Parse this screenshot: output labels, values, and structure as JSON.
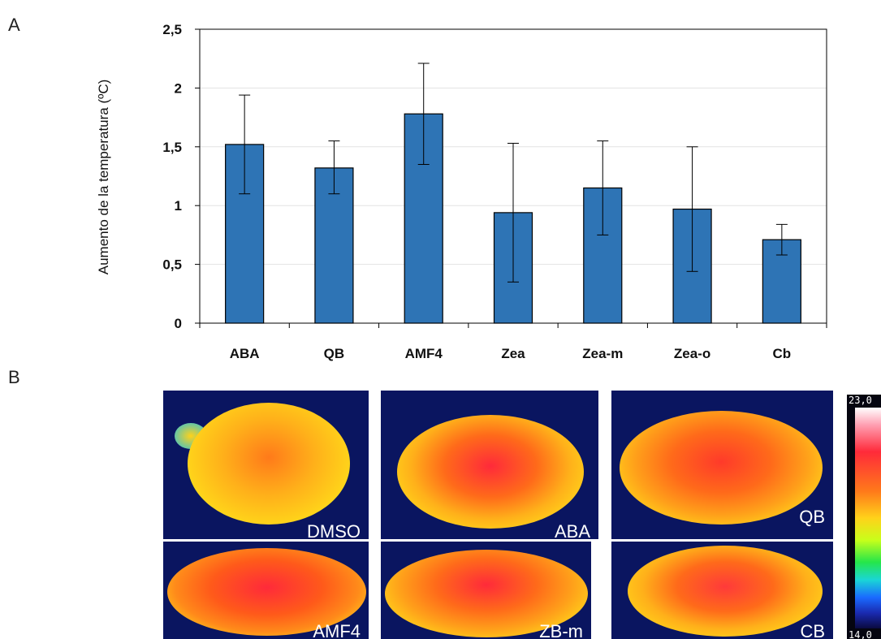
{
  "panels": {
    "a": "A",
    "b": "B"
  },
  "chart_data": {
    "type": "bar",
    "categories": [
      "ABA",
      "QB",
      "AMF4",
      "Zea",
      "Zea-m",
      "Zea-o",
      "Cb"
    ],
    "values": [
      1.52,
      1.32,
      1.78,
      0.94,
      1.15,
      0.97,
      0.71
    ],
    "error_low": [
      1.1,
      1.1,
      1.35,
      0.35,
      0.75,
      0.44,
      0.58
    ],
    "error_high": [
      1.94,
      1.55,
      2.21,
      1.53,
      1.55,
      1.5,
      0.84
    ],
    "ylabel": "Aumento de la temperatura (ºC)",
    "ylim": [
      0,
      2.5
    ],
    "yticks": [
      "0",
      "0,5",
      "1",
      "1,5",
      "2",
      "2,5"
    ],
    "bar_color": "#2e74b5",
    "grid": true
  },
  "thermal_images": [
    {
      "caption": "DMSO"
    },
    {
      "caption": "ABA"
    },
    {
      "caption": "QB"
    },
    {
      "caption": "AMF4"
    },
    {
      "caption": "ZB-m"
    },
    {
      "caption": "CB"
    }
  ],
  "colorbar": {
    "max_label": "23,0",
    "min_label": "14,0"
  }
}
